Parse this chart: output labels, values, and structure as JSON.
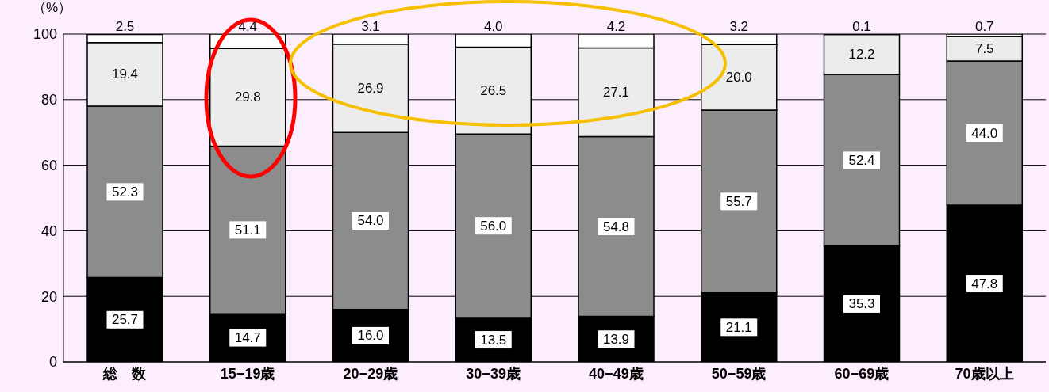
{
  "chart_data": {
    "type": "bar",
    "stacked": true,
    "ylabel": "（%）",
    "categories": [
      "総　数",
      "15−19歳",
      "20−29歳",
      "30−39歳",
      "40−49歳",
      "50−59歳",
      "60−69歳",
      "70歳以上"
    ],
    "series": [
      {
        "color": "#000000",
        "values": [
          25.7,
          14.7,
          16.0,
          13.5,
          13.9,
          21.1,
          35.3,
          47.8
        ],
        "value_labels": [
          "25.7",
          "14.7",
          "16.0",
          "13.5",
          "13.9",
          "21.1",
          "35.3",
          "47.8"
        ]
      },
      {
        "color": "#8c8c8c",
        "values": [
          52.3,
          51.1,
          54.0,
          56.0,
          54.8,
          55.7,
          52.4,
          44.0
        ],
        "value_labels": [
          "52.3",
          "51.1",
          "54.0",
          "56.0",
          "54.8",
          "55.7",
          "52.4",
          "44.0"
        ]
      },
      {
        "color": "#ececec",
        "values": [
          19.4,
          29.8,
          26.9,
          26.5,
          27.1,
          20.0,
          12.2,
          7.5
        ],
        "value_labels": [
          "19.4",
          "29.8",
          "26.9",
          "26.5",
          "27.1",
          "20.0",
          "12.2",
          "7.5"
        ]
      },
      {
        "color": "#ffffff",
        "values": [
          2.5,
          4.4,
          3.1,
          4.0,
          4.2,
          3.2,
          0.1,
          0.7
        ],
        "value_labels": [
          "2.5",
          "4.4",
          "3.1",
          "4.0",
          "4.2",
          "3.2",
          "0.1",
          "0.7"
        ]
      }
    ],
    "ylim": [
      0,
      100
    ],
    "yticks": [
      0,
      20,
      40,
      60,
      80,
      100
    ],
    "grid": "y",
    "legend": false
  }
}
